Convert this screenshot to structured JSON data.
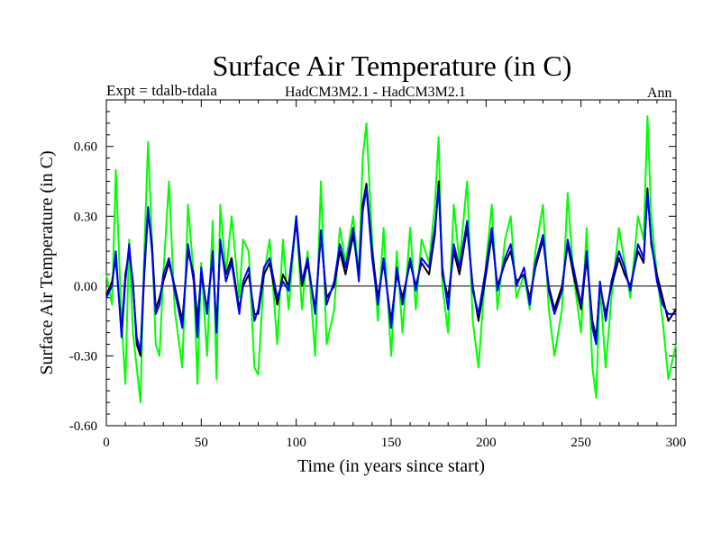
{
  "chart_data": {
    "type": "line",
    "title": "Surface Air Temperature (in C)",
    "header_left": "Expt = tdalb-tdala",
    "header_center": "HadCM3M2.1 - HadCM3M2.1",
    "header_right": "Ann",
    "xlabel": "Time (in years since start)",
    "ylabel": "Surface Air Temperature (in C)",
    "xlim": [
      0,
      300
    ],
    "ylim": [
      -0.6,
      0.8
    ],
    "xticks": [
      0,
      50,
      100,
      150,
      200,
      250,
      300
    ],
    "xtick_labels": [
      "0",
      "50",
      "100",
      "150",
      "200",
      "250",
      "300"
    ],
    "yticks": [
      -0.6,
      -0.3,
      0.0,
      0.3,
      0.6
    ],
    "ytick_labels": [
      "-0.60",
      "-0.30",
      "0.00",
      "0.30",
      "0.60"
    ],
    "zero_line": true,
    "series": [
      {
        "name": "green",
        "color": "#00ff00",
        "x": [
          0,
          3,
          5,
          8,
          10,
          12,
          14,
          16,
          18,
          20,
          22,
          24,
          26,
          28,
          30,
          33,
          36,
          40,
          43,
          46,
          48,
          50,
          53,
          56,
          58,
          60,
          63,
          66,
          70,
          72,
          75,
          78,
          80,
          83,
          86,
          90,
          93,
          96,
          100,
          103,
          106,
          110,
          113,
          116,
          120,
          123,
          126,
          130,
          133,
          135,
          137,
          140,
          143,
          146,
          150,
          153,
          156,
          160,
          163,
          166,
          170,
          173,
          175,
          177,
          180,
          183,
          186,
          190,
          193,
          196,
          200,
          203,
          206,
          210,
          213,
          216,
          220,
          223,
          226,
          230,
          233,
          236,
          240,
          243,
          246,
          250,
          253,
          256,
          258,
          260,
          263,
          266,
          270,
          273,
          276,
          280,
          283,
          285,
          287,
          290,
          293,
          296,
          300
        ],
        "values": [
          0.05,
          -0.08,
          0.5,
          -0.15,
          -0.42,
          0.2,
          -0.2,
          -0.35,
          -0.5,
          0.15,
          0.62,
          0.2,
          -0.25,
          -0.3,
          0.05,
          0.45,
          -0.1,
          -0.35,
          0.35,
          0.05,
          -0.42,
          0.1,
          -0.3,
          0.28,
          -0.4,
          0.35,
          0.05,
          0.3,
          -0.05,
          0.2,
          0.15,
          -0.35,
          -0.38,
          0.05,
          0.2,
          -0.25,
          0.2,
          -0.1,
          0.3,
          -0.1,
          0.15,
          -0.3,
          0.45,
          -0.25,
          -0.1,
          0.25,
          0.1,
          0.3,
          0.05,
          0.55,
          0.7,
          0.2,
          -0.15,
          0.25,
          -0.3,
          0.15,
          -0.2,
          0.25,
          -0.1,
          0.2,
          0.1,
          0.35,
          0.64,
          0.0,
          -0.2,
          0.35,
          0.1,
          0.45,
          -0.15,
          -0.35,
          0.1,
          0.35,
          -0.1,
          0.2,
          0.3,
          -0.05,
          0.05,
          -0.1,
          0.15,
          0.35,
          -0.1,
          -0.3,
          -0.1,
          0.4,
          0.05,
          -0.2,
          0.25,
          -0.35,
          -0.48,
          0.0,
          -0.35,
          -0.05,
          0.25,
          0.1,
          -0.05,
          0.3,
          0.2,
          0.73,
          0.3,
          0.05,
          -0.15,
          -0.4,
          -0.25
        ]
      },
      {
        "name": "black",
        "color": "#000000",
        "x": [
          0,
          3,
          5,
          8,
          10,
          12,
          14,
          16,
          18,
          20,
          22,
          24,
          26,
          28,
          30,
          33,
          36,
          40,
          43,
          46,
          48,
          50,
          53,
          56,
          58,
          60,
          63,
          66,
          70,
          72,
          75,
          78,
          80,
          83,
          86,
          90,
          93,
          96,
          100,
          103,
          106,
          110,
          113,
          116,
          120,
          123,
          126,
          130,
          133,
          135,
          137,
          140,
          143,
          146,
          150,
          153,
          156,
          160,
          163,
          166,
          170,
          173,
          175,
          177,
          180,
          183,
          186,
          190,
          193,
          196,
          200,
          203,
          206,
          210,
          213,
          216,
          220,
          223,
          226,
          230,
          233,
          236,
          240,
          243,
          246,
          250,
          253,
          256,
          258,
          260,
          263,
          266,
          270,
          273,
          276,
          280,
          283,
          285,
          287,
          290,
          293,
          296,
          300
        ],
        "values": [
          -0.04,
          0.02,
          0.12,
          -0.2,
          0.05,
          0.15,
          0.02,
          -0.25,
          -0.3,
          0.05,
          0.32,
          0.18,
          -0.1,
          -0.05,
          0.02,
          0.1,
          0.0,
          -0.15,
          0.15,
          0.05,
          -0.15,
          0.05,
          -0.1,
          0.12,
          -0.18,
          0.18,
          0.05,
          0.12,
          -0.1,
          0.0,
          0.05,
          -0.12,
          -0.12,
          0.05,
          0.1,
          -0.08,
          0.05,
          0.0,
          0.28,
          0.0,
          0.1,
          -0.1,
          0.22,
          -0.05,
          0.0,
          0.15,
          0.05,
          0.22,
          0.05,
          0.35,
          0.44,
          0.15,
          -0.05,
          0.1,
          -0.15,
          0.05,
          -0.05,
          0.1,
          0.0,
          0.1,
          0.05,
          0.22,
          0.45,
          0.05,
          -0.05,
          0.15,
          0.05,
          0.25,
          0.0,
          -0.15,
          0.05,
          0.22,
          0.0,
          0.1,
          0.15,
          0.02,
          0.05,
          -0.05,
          0.08,
          0.2,
          0.0,
          -0.1,
          0.0,
          0.18,
          0.05,
          -0.1,
          0.12,
          -0.15,
          -0.22,
          0.0,
          -0.12,
          0.0,
          0.12,
          0.05,
          0.0,
          0.15,
          0.1,
          0.42,
          0.18,
          0.05,
          -0.05,
          -0.15,
          -0.1
        ]
      },
      {
        "name": "blue",
        "color": "#0000ff",
        "x": [
          0,
          3,
          5,
          8,
          10,
          12,
          14,
          16,
          18,
          20,
          22,
          24,
          26,
          28,
          30,
          33,
          36,
          40,
          43,
          46,
          48,
          50,
          53,
          56,
          58,
          60,
          63,
          66,
          70,
          72,
          75,
          78,
          80,
          83,
          86,
          90,
          93,
          96,
          100,
          103,
          106,
          110,
          113,
          116,
          120,
          123,
          126,
          130,
          133,
          135,
          137,
          140,
          143,
          146,
          150,
          153,
          156,
          160,
          163,
          166,
          170,
          173,
          175,
          177,
          180,
          183,
          186,
          190,
          193,
          196,
          200,
          203,
          206,
          210,
          213,
          216,
          220,
          223,
          226,
          230,
          233,
          236,
          240,
          243,
          246,
          250,
          253,
          256,
          258,
          260,
          263,
          266,
          270,
          273,
          276,
          280,
          283,
          285,
          287,
          290,
          293,
          296,
          300
        ],
        "values": [
          -0.05,
          0.0,
          0.15,
          -0.22,
          0.02,
          0.18,
          0.0,
          -0.22,
          -0.28,
          0.08,
          0.34,
          0.15,
          -0.12,
          -0.08,
          0.05,
          0.12,
          -0.02,
          -0.18,
          0.18,
          0.02,
          -0.22,
          0.08,
          -0.12,
          0.15,
          -0.2,
          0.2,
          0.02,
          0.1,
          -0.12,
          0.02,
          0.08,
          -0.15,
          -0.1,
          0.08,
          0.12,
          -0.05,
          0.02,
          -0.02,
          0.3,
          0.02,
          0.12,
          -0.12,
          0.24,
          -0.08,
          0.02,
          0.18,
          0.08,
          0.25,
          0.02,
          0.32,
          0.42,
          0.12,
          -0.08,
          0.12,
          -0.18,
          0.08,
          -0.08,
          0.12,
          -0.02,
          0.12,
          0.08,
          0.25,
          0.42,
          0.08,
          -0.1,
          0.18,
          0.08,
          0.28,
          -0.02,
          -0.12,
          0.08,
          0.25,
          -0.02,
          0.12,
          0.18,
          0.0,
          0.08,
          -0.08,
          0.1,
          0.22,
          -0.02,
          -0.12,
          -0.02,
          0.2,
          0.08,
          -0.08,
          0.15,
          -0.18,
          -0.25,
          0.02,
          -0.15,
          0.02,
          0.15,
          0.08,
          -0.02,
          0.18,
          0.12,
          0.4,
          0.2,
          0.02,
          -0.08,
          -0.12,
          -0.12
        ]
      }
    ]
  }
}
